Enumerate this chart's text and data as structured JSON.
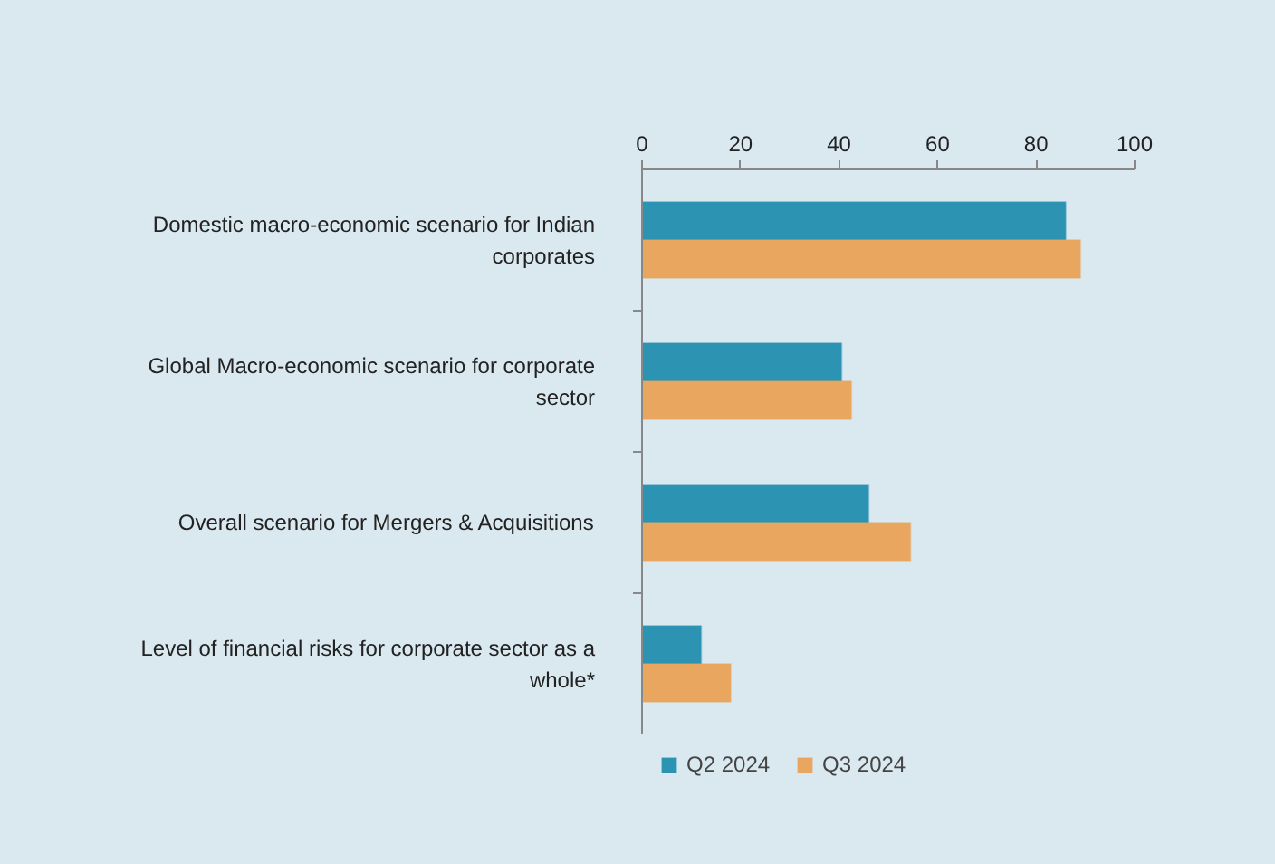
{
  "chart_data": {
    "type": "bar",
    "orientation": "horizontal",
    "categories": [
      "Domestic macro-economic scenario for Indian corporates",
      "Global Macro-economic scenario for corporate sector",
      "Overall scenario for Mergers & Acquisitions",
      "Level of financial risks for corporate sector as a whole*"
    ],
    "series": [
      {
        "name": "Q2 2024",
        "color": "#2c93b3",
        "values": [
          86,
          40.5,
          46,
          12
        ]
      },
      {
        "name": "Q3 2024",
        "color": "#e9a65f",
        "values": [
          89,
          42.5,
          54.5,
          18
        ]
      }
    ],
    "xlim": [
      0,
      100
    ],
    "xticks": [
      0,
      20,
      40,
      60,
      80,
      100
    ],
    "grid": false,
    "legend": "bottom"
  }
}
